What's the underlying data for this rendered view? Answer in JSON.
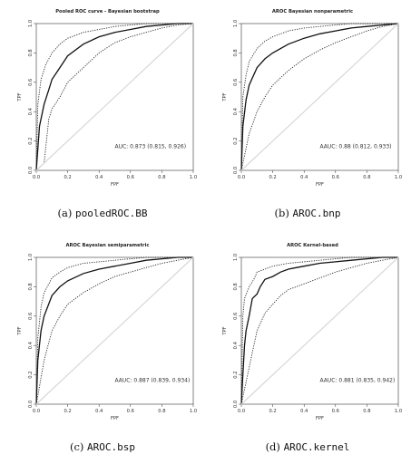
{
  "panels": [
    {
      "caption_prefix": "(a)",
      "caption_code": "pooledROC.BB",
      "chart_data": {
        "type": "line",
        "title": "Pooled ROC curve - Bayesian bootstrap",
        "xlabel": "FPF",
        "ylabel": "TPF",
        "xlim": [
          0,
          1
        ],
        "ylim": [
          0,
          1
        ],
        "xticks": [
          "0.0",
          "0.2",
          "0.4",
          "0.6",
          "0.8",
          "1.0"
        ],
        "yticks": [
          "0.0",
          "0.2",
          "0.4",
          "0.6",
          "0.8",
          "1.0"
        ],
        "annotation": "AUC: 0.873 (0.815, 0.926)",
        "series": [
          {
            "role": "estimate",
            "style": "solid",
            "x": [
              0,
              0.02,
              0.05,
              0.08,
              0.1,
              0.15,
              0.2,
              0.3,
              0.4,
              0.5,
              0.6,
              0.7,
              0.8,
              0.9,
              1
            ],
            "y": [
              0,
              0.3,
              0.45,
              0.55,
              0.62,
              0.7,
              0.78,
              0.86,
              0.91,
              0.94,
              0.96,
              0.98,
              0.99,
              1,
              1
            ]
          },
          {
            "role": "upper",
            "style": "dotted",
            "x": [
              0,
              0.01,
              0.03,
              0.06,
              0.1,
              0.15,
              0.2,
              0.3,
              0.4,
              0.5,
              0.6,
              0.7,
              0.8,
              0.9,
              1
            ],
            "y": [
              0,
              0.45,
              0.62,
              0.72,
              0.8,
              0.86,
              0.9,
              0.94,
              0.96,
              0.98,
              0.99,
              1,
              1,
              1,
              1
            ]
          },
          {
            "role": "lower",
            "style": "dotted",
            "x": [
              0,
              0.05,
              0.08,
              0.1,
              0.12,
              0.15,
              0.2,
              0.3,
              0.4,
              0.5,
              0.6,
              0.7,
              0.8,
              0.9,
              1
            ],
            "y": [
              0,
              0.05,
              0.35,
              0.42,
              0.45,
              0.5,
              0.6,
              0.7,
              0.8,
              0.87,
              0.91,
              0.94,
              0.97,
              0.99,
              1
            ]
          },
          {
            "role": "chance",
            "style": "faint",
            "x": [
              0,
              1
            ],
            "y": [
              0,
              1
            ]
          }
        ]
      }
    },
    {
      "caption_prefix": "(b)",
      "caption_code": "AROC.bnp",
      "chart_data": {
        "type": "line",
        "title": "AROC Bayesian nonparametric",
        "xlabel": "FPF",
        "ylabel": "TPF",
        "xlim": [
          0,
          1
        ],
        "ylim": [
          0,
          1
        ],
        "xticks": [
          "0.0",
          "0.2",
          "0.4",
          "0.6",
          "0.8",
          "1.0"
        ],
        "yticks": [
          "0.0",
          "0.2",
          "0.4",
          "0.6",
          "0.8",
          "1.0"
        ],
        "annotation": "AAUC: 0.88 (0.812, 0.933)",
        "series": [
          {
            "role": "estimate",
            "style": "solid",
            "x": [
              0,
              0.01,
              0.03,
              0.05,
              0.1,
              0.15,
              0.2,
              0.3,
              0.4,
              0.5,
              0.6,
              0.7,
              0.8,
              0.9,
              1
            ],
            "y": [
              0,
              0.3,
              0.48,
              0.58,
              0.7,
              0.76,
              0.8,
              0.86,
              0.9,
              0.93,
              0.95,
              0.97,
              0.98,
              0.99,
              1
            ]
          },
          {
            "role": "upper",
            "style": "dotted",
            "x": [
              0,
              0.01,
              0.03,
              0.05,
              0.1,
              0.15,
              0.2,
              0.3,
              0.4,
              0.5,
              0.6,
              0.7,
              0.8,
              0.9,
              1
            ],
            "y": [
              0,
              0.5,
              0.65,
              0.74,
              0.83,
              0.88,
              0.91,
              0.95,
              0.97,
              0.98,
              0.99,
              1,
              1,
              1,
              1
            ]
          },
          {
            "role": "lower",
            "style": "dotted",
            "x": [
              0,
              0.02,
              0.05,
              0.1,
              0.15,
              0.2,
              0.3,
              0.4,
              0.5,
              0.6,
              0.7,
              0.8,
              0.9,
              1
            ],
            "y": [
              0,
              0.1,
              0.25,
              0.4,
              0.5,
              0.58,
              0.68,
              0.76,
              0.82,
              0.87,
              0.91,
              0.95,
              0.98,
              1
            ]
          },
          {
            "role": "chance",
            "style": "faint",
            "x": [
              0,
              1
            ],
            "y": [
              0,
              1
            ]
          }
        ]
      }
    },
    {
      "caption_prefix": "(c)",
      "caption_code": "AROC.bsp",
      "chart_data": {
        "type": "line",
        "title": "AROC Bayesian semiparametric",
        "xlabel": "FPF",
        "ylabel": "TPF",
        "xlim": [
          0,
          1
        ],
        "ylim": [
          0,
          1
        ],
        "xticks": [
          "0.0",
          "0.2",
          "0.4",
          "0.6",
          "0.8",
          "1.0"
        ],
        "yticks": [
          "0.0",
          "0.2",
          "0.4",
          "0.6",
          "0.8",
          "1.0"
        ],
        "annotation": "AAUC: 0.887 (0.839, 0.934)",
        "series": [
          {
            "role": "estimate",
            "style": "solid",
            "x": [
              0,
              0.01,
              0.03,
              0.05,
              0.1,
              0.15,
              0.2,
              0.3,
              0.4,
              0.5,
              0.6,
              0.7,
              0.8,
              0.9,
              1
            ],
            "y": [
              0,
              0.3,
              0.5,
              0.6,
              0.74,
              0.8,
              0.84,
              0.89,
              0.92,
              0.94,
              0.96,
              0.98,
              0.99,
              1,
              1
            ]
          },
          {
            "role": "upper",
            "style": "dotted",
            "x": [
              0,
              0.01,
              0.03,
              0.05,
              0.1,
              0.15,
              0.2,
              0.3,
              0.4,
              0.5,
              0.6,
              0.7,
              0.8,
              0.9,
              1
            ],
            "y": [
              0,
              0.45,
              0.66,
              0.76,
              0.86,
              0.9,
              0.93,
              0.96,
              0.97,
              0.98,
              0.99,
              1,
              1,
              1,
              1
            ]
          },
          {
            "role": "lower",
            "style": "dotted",
            "x": [
              0,
              0.02,
              0.05,
              0.1,
              0.15,
              0.2,
              0.3,
              0.4,
              0.5,
              0.6,
              0.7,
              0.8,
              0.9,
              1
            ],
            "y": [
              0,
              0.12,
              0.3,
              0.5,
              0.6,
              0.68,
              0.76,
              0.82,
              0.87,
              0.9,
              0.93,
              0.96,
              0.98,
              1
            ]
          },
          {
            "role": "chance",
            "style": "faint",
            "x": [
              0,
              1
            ],
            "y": [
              0,
              1
            ]
          }
        ]
      }
    },
    {
      "caption_prefix": "(d)",
      "caption_code": "AROC.kernel",
      "chart_data": {
        "type": "line",
        "title": "AROC Kernel-based",
        "xlabel": "FPF",
        "ylabel": "TPF",
        "xlim": [
          0,
          1
        ],
        "ylim": [
          0,
          1
        ],
        "xticks": [
          "0.0",
          "0.2",
          "0.4",
          "0.6",
          "0.8",
          "1.0"
        ],
        "yticks": [
          "0.0",
          "0.2",
          "0.4",
          "0.6",
          "0.8",
          "1.0"
        ],
        "annotation": "AAUC: 0.881 (0.835, 0.942)",
        "series": [
          {
            "role": "estimate",
            "style": "solid",
            "x": [
              0,
              0.01,
              0.02,
              0.03,
              0.05,
              0.07,
              0.1,
              0.12,
              0.15,
              0.2,
              0.25,
              0.3,
              0.35,
              0.4,
              0.5,
              0.6,
              0.7,
              0.8,
              0.9,
              1
            ],
            "y": [
              0,
              0.2,
              0.4,
              0.5,
              0.6,
              0.72,
              0.75,
              0.8,
              0.85,
              0.87,
              0.9,
              0.92,
              0.93,
              0.94,
              0.96,
              0.97,
              0.98,
              0.99,
              1,
              1
            ]
          },
          {
            "role": "upper",
            "style": "dotted",
            "x": [
              0,
              0.01,
              0.02,
              0.05,
              0.08,
              0.1,
              0.15,
              0.2,
              0.3,
              0.4,
              0.5,
              0.6,
              0.7,
              0.8,
              0.9,
              1
            ],
            "y": [
              0,
              0.6,
              0.72,
              0.8,
              0.85,
              0.9,
              0.92,
              0.94,
              0.96,
              0.97,
              0.98,
              0.99,
              1,
              1,
              1,
              1
            ]
          },
          {
            "role": "lower",
            "style": "dotted",
            "x": [
              0,
              0.01,
              0.03,
              0.05,
              0.08,
              0.1,
              0.15,
              0.2,
              0.25,
              0.3,
              0.4,
              0.5,
              0.6,
              0.7,
              0.8,
              0.9,
              1
            ],
            "y": [
              0,
              0.05,
              0.15,
              0.25,
              0.4,
              0.5,
              0.62,
              0.68,
              0.74,
              0.78,
              0.82,
              0.86,
              0.9,
              0.93,
              0.96,
              0.98,
              1
            ]
          },
          {
            "role": "chance",
            "style": "faint",
            "x": [
              0,
              1
            ],
            "y": [
              0,
              1
            ]
          }
        ]
      }
    }
  ]
}
